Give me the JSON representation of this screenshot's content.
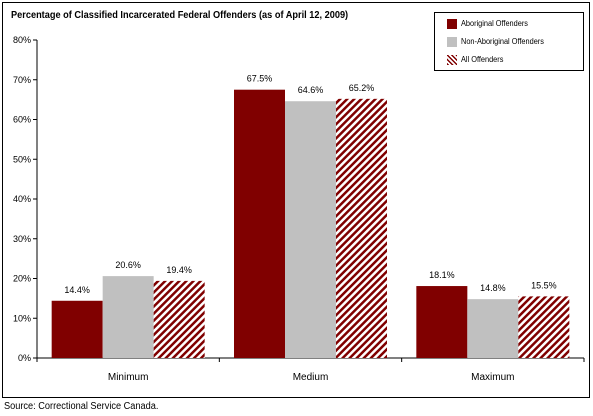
{
  "chart_data": {
    "type": "bar",
    "title": "Percentage of Classified Incarcerated Federal Offenders (as of April 12, 2009)",
    "categories": [
      "Minimum",
      "Medium",
      "Maximum"
    ],
    "series": [
      {
        "name": "Aboriginal Offenders",
        "values": [
          14.4,
          67.5,
          18.1
        ],
        "color": "#800000",
        "pattern": "solid"
      },
      {
        "name": "Non-Aboriginal Offenders",
        "values": [
          20.6,
          64.6,
          14.8
        ],
        "color": "#c0c0c0",
        "pattern": "solid"
      },
      {
        "name": "All Offenders",
        "values": [
          19.4,
          65.2,
          15.5
        ],
        "color": "#800000",
        "pattern": "diagonal-hatch"
      }
    ],
    "data_labels": [
      [
        "14.4%",
        "67.5%",
        "18.1%"
      ],
      [
        "20.6%",
        "64.6%",
        "14.8%"
      ],
      [
        "19.4%",
        "65.2%",
        "15.5%"
      ]
    ],
    "y_ticks": [
      0,
      10,
      20,
      30,
      40,
      50,
      60,
      70,
      80
    ],
    "y_tick_labels": [
      "0%",
      "10%",
      "20%",
      "30%",
      "40%",
      "50%",
      "60%",
      "70%",
      "80%"
    ],
    "ylim": [
      0,
      80
    ],
    "xlabel": "",
    "ylabel": "",
    "grid": false,
    "legend_position": "top-right"
  },
  "source_note": "Source:  Correctional Service Canada."
}
